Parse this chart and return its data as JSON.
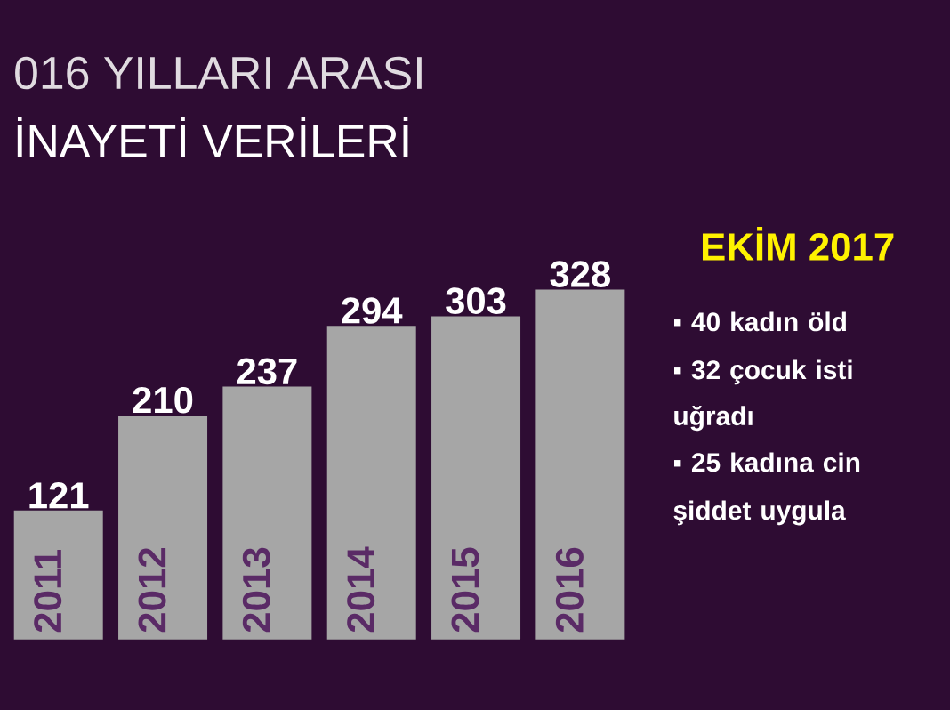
{
  "chart_data": {
    "type": "bar",
    "title": "016 YILLARI ARASI",
    "subtitle": "İNAYETİ VERİLERİ",
    "categories": [
      "2011",
      "2012",
      "2013",
      "2014",
      "2015",
      "2016"
    ],
    "values": [
      121,
      210,
      237,
      294,
      303,
      328
    ],
    "color": "#a6a6a6",
    "data_labels": true,
    "annotations": [
      "EKİM 2017",
      "▪ 40 kadın öld",
      "▪ 32 çocuk isti uğradı",
      "▪ 25 kadına cin",
      "şiddet uygula"
    ]
  }
}
